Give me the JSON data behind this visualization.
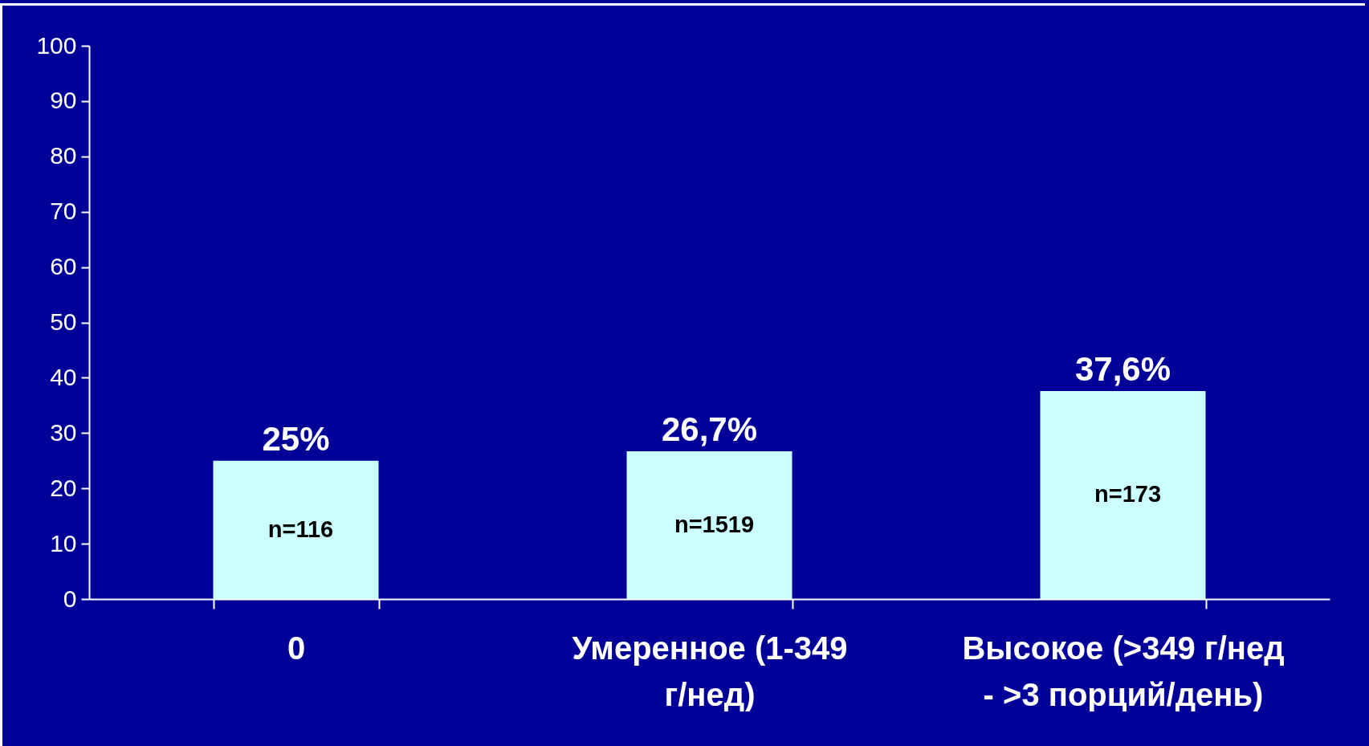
{
  "chart_data": {
    "type": "bar",
    "categories": [
      "0",
      "Умеренное (1-349 г/нед)",
      "Высокое (>349 г/нед - >3 порций/день)"
    ],
    "values": [
      25,
      26.7,
      37.6
    ],
    "value_labels": [
      "25%",
      "26,7%",
      "37,6%"
    ],
    "color": "#ccffff",
    "ylim": [
      0,
      100
    ],
    "yticks": [
      0,
      10,
      20,
      30,
      40,
      50,
      60,
      70,
      80,
      90,
      100
    ],
    "grid": false,
    "annotations": [
      "n=116",
      "n=1519",
      "n=173"
    ]
  }
}
